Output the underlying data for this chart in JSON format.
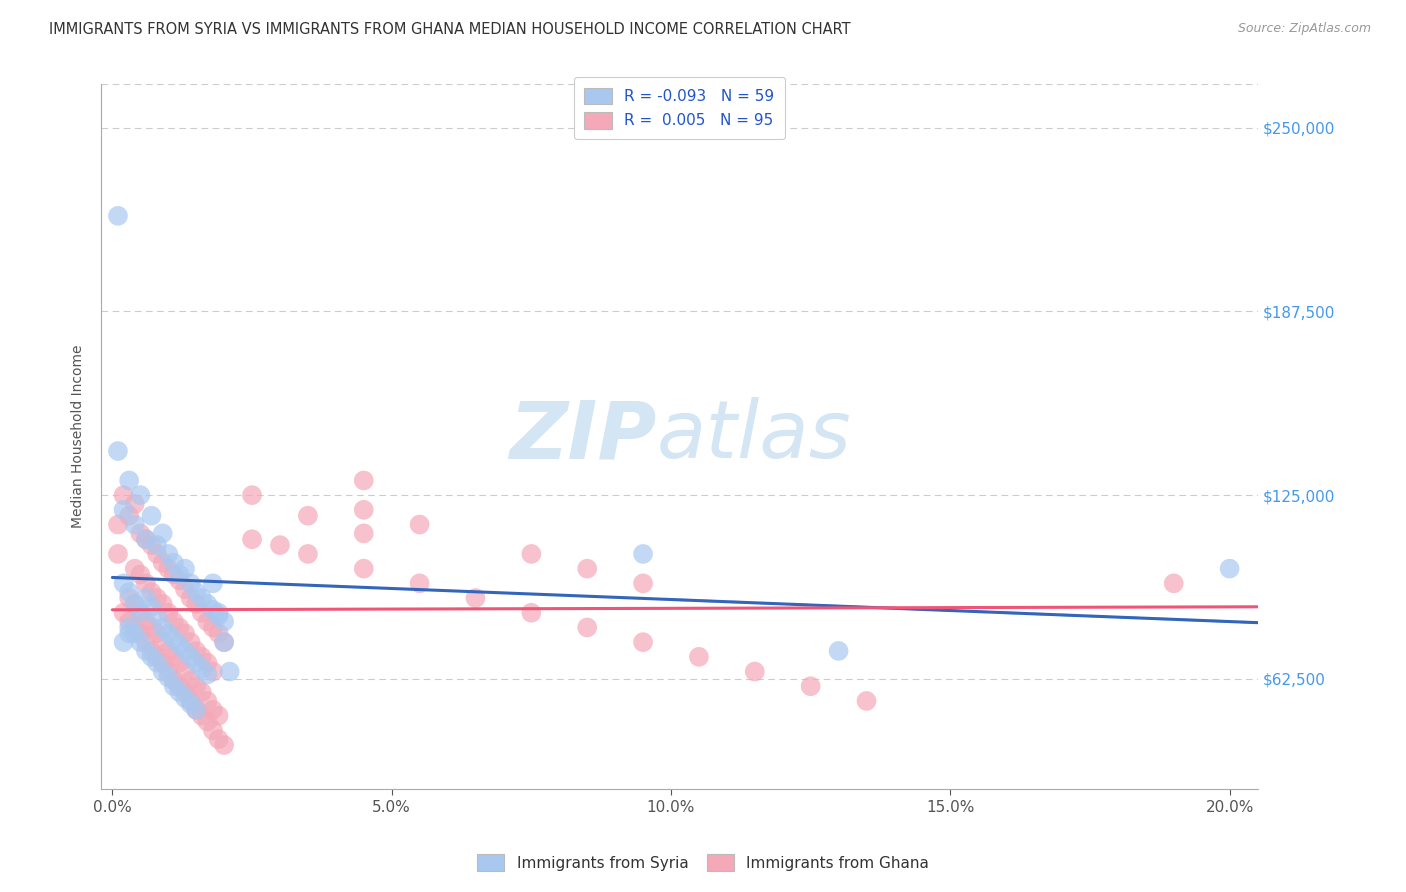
{
  "title": "IMMIGRANTS FROM SYRIA VS IMMIGRANTS FROM GHANA MEDIAN HOUSEHOLD INCOME CORRELATION CHART",
  "source": "Source: ZipAtlas.com",
  "ylabel": "Median Household Income",
  "xlabel_ticks": [
    "0.0%",
    "5.0%",
    "10.0%",
    "15.0%",
    "20.0%"
  ],
  "xlabel_vals": [
    0.0,
    0.05,
    0.1,
    0.15,
    0.2
  ],
  "ytick_labels": [
    "$62,500",
    "$125,000",
    "$187,500",
    "$250,000"
  ],
  "ytick_vals": [
    62500,
    125000,
    187500,
    250000
  ],
  "ylim": [
    25000,
    265000
  ],
  "xlim": [
    -0.002,
    0.205
  ],
  "syria_R": "-0.093",
  "syria_N": "59",
  "ghana_R": "0.005",
  "ghana_N": "95",
  "syria_color": "#a8c8f0",
  "ghana_color": "#f4a8b8",
  "syria_line_color": "#3366bb",
  "ghana_line_color": "#ee5577",
  "watermark_zip": "ZIP",
  "watermark_atlas": "atlas",
  "syria_scatter_x": [
    0.001,
    0.002,
    0.003,
    0.004,
    0.005,
    0.006,
    0.007,
    0.008,
    0.009,
    0.01,
    0.011,
    0.012,
    0.013,
    0.014,
    0.015,
    0.016,
    0.017,
    0.018,
    0.019,
    0.02,
    0.002,
    0.003,
    0.004,
    0.005,
    0.006,
    0.007,
    0.008,
    0.009,
    0.01,
    0.011,
    0.012,
    0.013,
    0.014,
    0.015,
    0.016,
    0.017,
    0.018,
    0.019,
    0.02,
    0.021,
    0.003,
    0.004,
    0.005,
    0.006,
    0.007,
    0.008,
    0.009,
    0.01,
    0.011,
    0.012,
    0.013,
    0.014,
    0.015,
    0.095,
    0.13,
    0.001,
    0.002,
    0.003,
    0.2
  ],
  "syria_scatter_y": [
    140000,
    120000,
    130000,
    115000,
    125000,
    110000,
    118000,
    108000,
    112000,
    105000,
    102000,
    98000,
    100000,
    95000,
    92000,
    90000,
    88000,
    86000,
    84000,
    82000,
    95000,
    92000,
    88000,
    85000,
    90000,
    87000,
    84000,
    80000,
    78000,
    76000,
    74000,
    72000,
    70000,
    68000,
    66000,
    64000,
    95000,
    85000,
    75000,
    65000,
    80000,
    78000,
    75000,
    72000,
    70000,
    68000,
    65000,
    63000,
    60000,
    58000,
    56000,
    54000,
    52000,
    105000,
    72000,
    220000,
    75000,
    78000,
    100000
  ],
  "ghana_scatter_x": [
    0.001,
    0.002,
    0.003,
    0.004,
    0.005,
    0.006,
    0.007,
    0.008,
    0.009,
    0.01,
    0.011,
    0.012,
    0.013,
    0.014,
    0.015,
    0.016,
    0.017,
    0.018,
    0.019,
    0.02,
    0.002,
    0.003,
    0.004,
    0.005,
    0.006,
    0.007,
    0.008,
    0.009,
    0.01,
    0.011,
    0.012,
    0.013,
    0.014,
    0.015,
    0.016,
    0.017,
    0.018,
    0.019,
    0.02,
    0.003,
    0.004,
    0.005,
    0.006,
    0.007,
    0.008,
    0.009,
    0.01,
    0.011,
    0.012,
    0.013,
    0.014,
    0.015,
    0.016,
    0.017,
    0.018,
    0.019,
    0.004,
    0.005,
    0.006,
    0.007,
    0.008,
    0.009,
    0.01,
    0.011,
    0.012,
    0.013,
    0.014,
    0.015,
    0.016,
    0.017,
    0.018,
    0.025,
    0.03,
    0.035,
    0.045,
    0.055,
    0.065,
    0.075,
    0.085,
    0.095,
    0.105,
    0.115,
    0.125,
    0.135,
    0.045,
    0.055,
    0.075,
    0.085,
    0.095,
    0.045,
    0.025,
    0.035,
    0.045,
    0.19,
    0.001
  ],
  "ghana_scatter_y": [
    115000,
    125000,
    118000,
    122000,
    112000,
    110000,
    108000,
    105000,
    102000,
    100000,
    98000,
    96000,
    93000,
    90000,
    88000,
    85000,
    82000,
    80000,
    78000,
    75000,
    85000,
    82000,
    80000,
    78000,
    75000,
    72000,
    70000,
    68000,
    65000,
    62000,
    60000,
    58000,
    55000,
    52000,
    50000,
    48000,
    45000,
    42000,
    40000,
    90000,
    88000,
    85000,
    82000,
    80000,
    78000,
    75000,
    72000,
    70000,
    68000,
    65000,
    62000,
    60000,
    58000,
    55000,
    52000,
    50000,
    100000,
    98000,
    95000,
    92000,
    90000,
    88000,
    85000,
    82000,
    80000,
    78000,
    75000,
    72000,
    70000,
    68000,
    65000,
    110000,
    108000,
    105000,
    100000,
    95000,
    90000,
    85000,
    80000,
    75000,
    70000,
    65000,
    60000,
    55000,
    120000,
    115000,
    105000,
    100000,
    95000,
    130000,
    125000,
    118000,
    112000,
    95000,
    105000
  ]
}
